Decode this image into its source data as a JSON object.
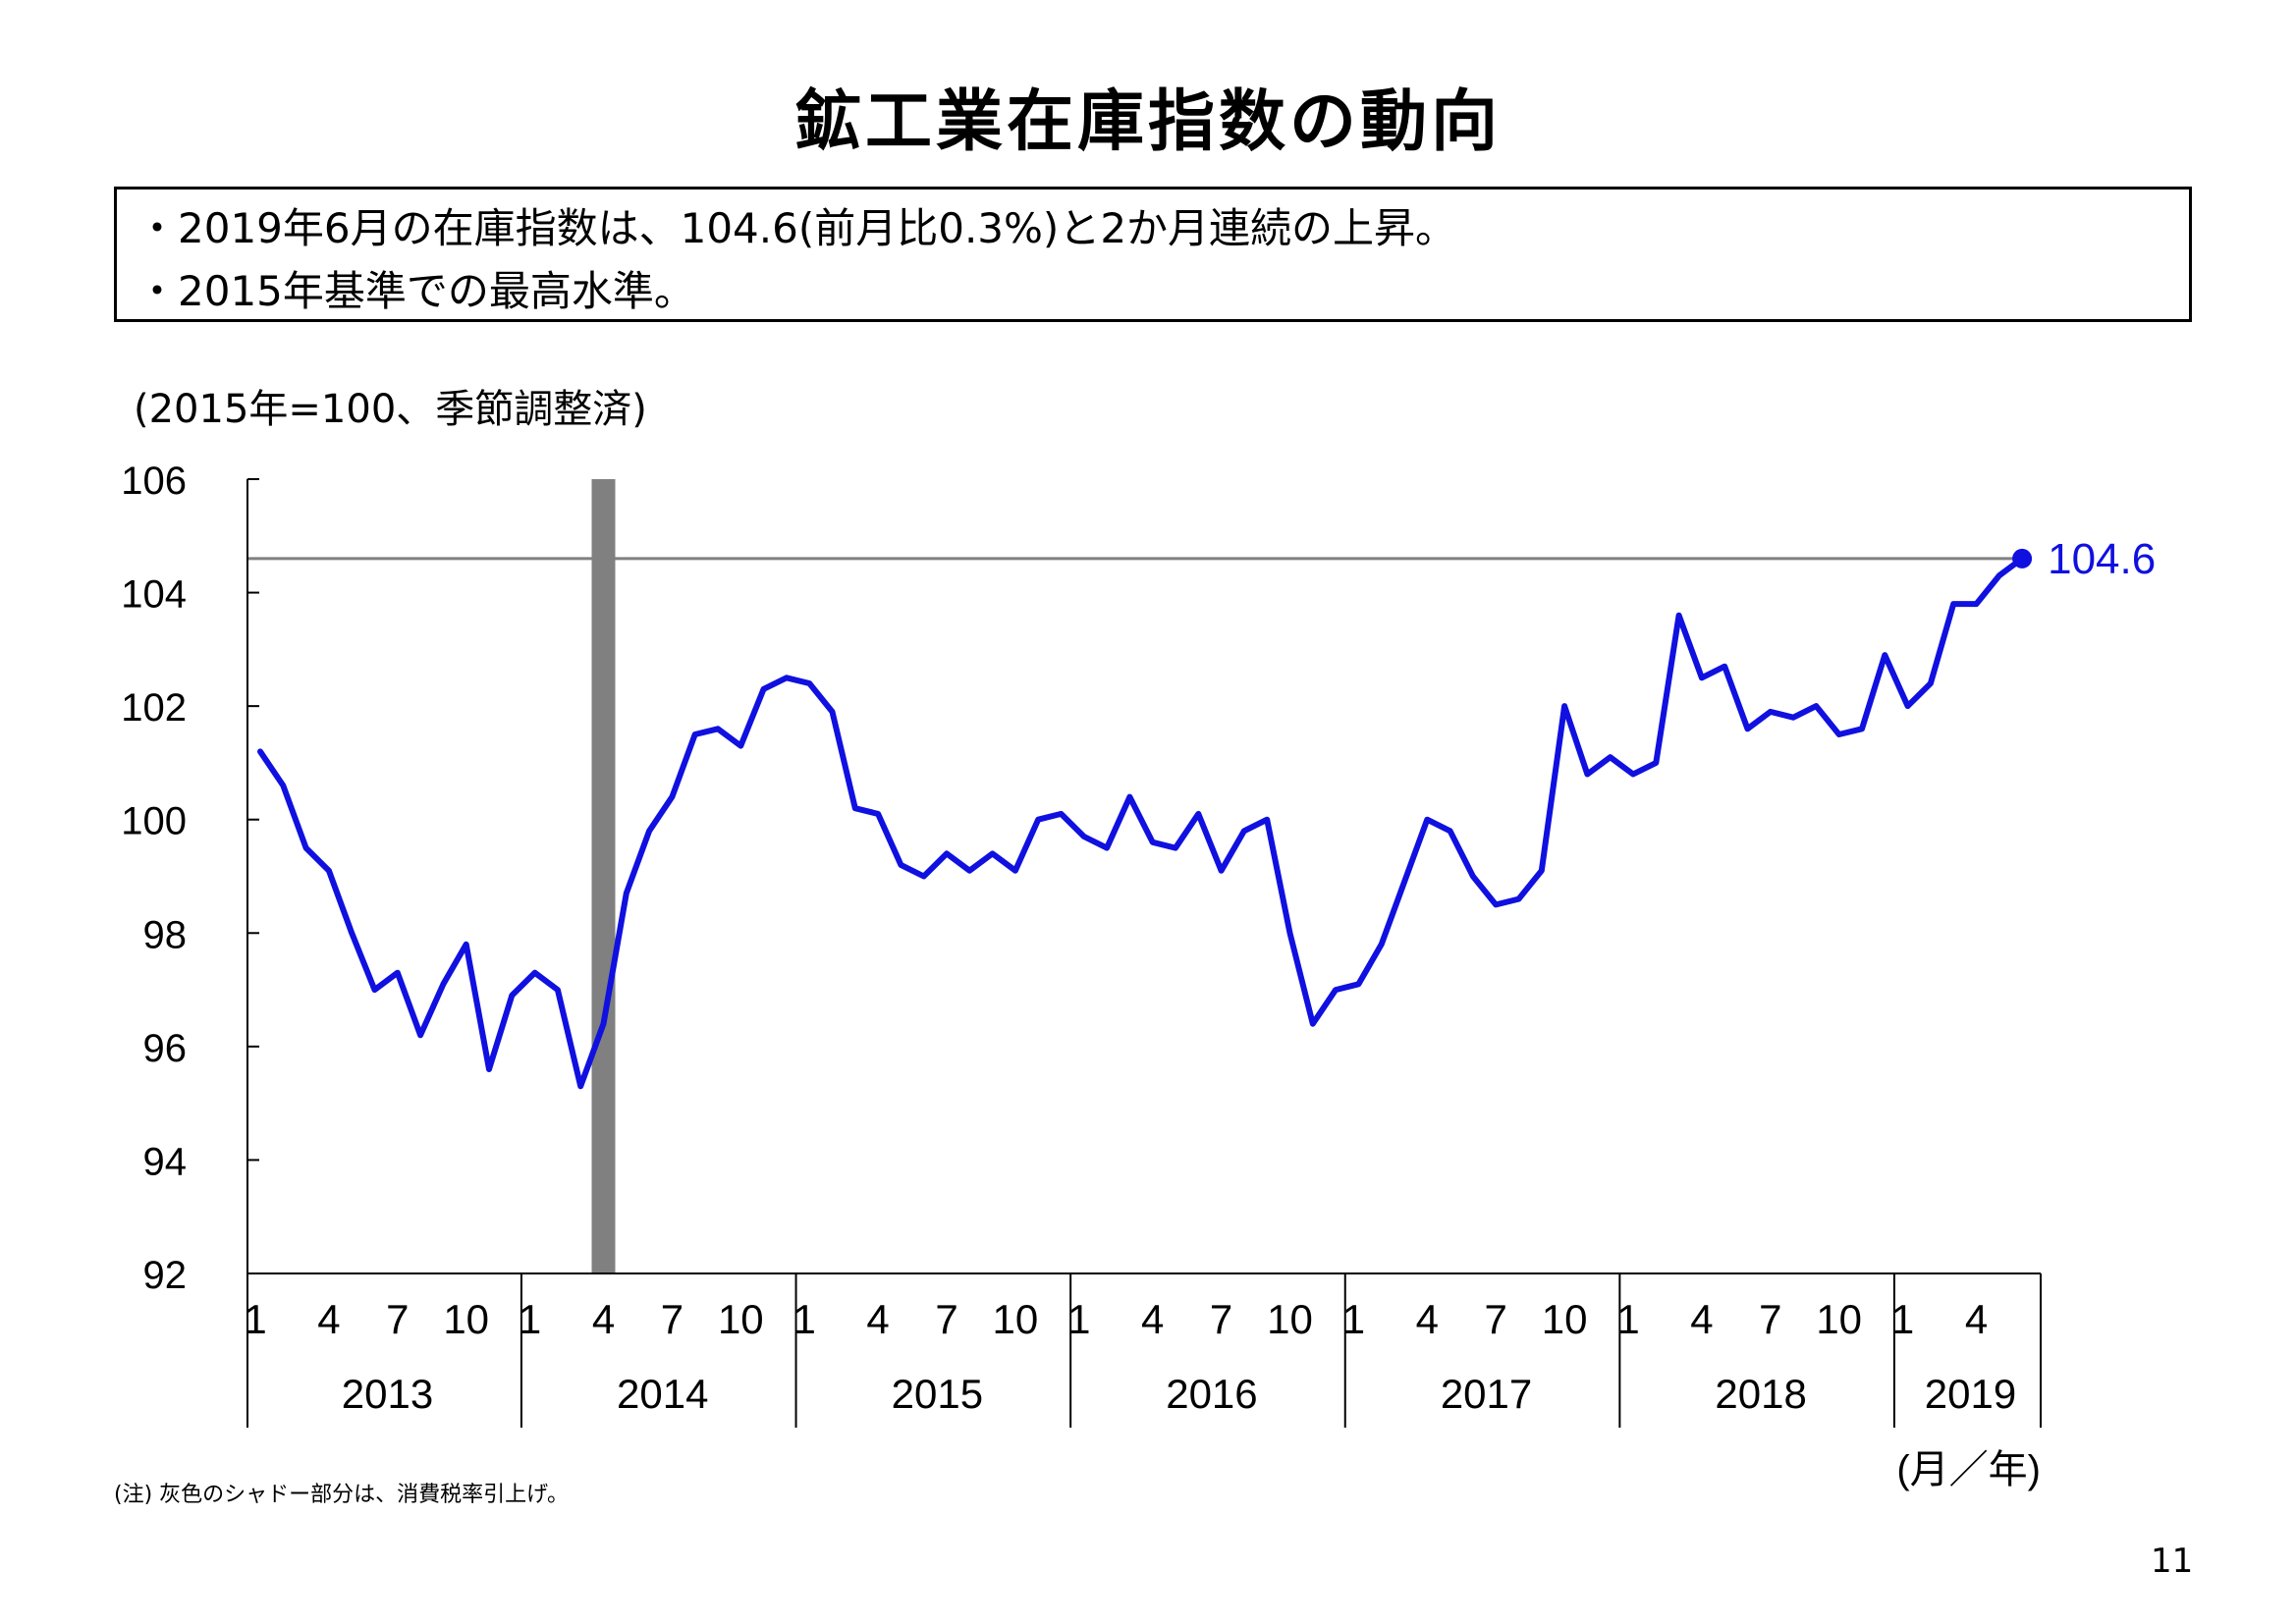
{
  "title": "鉱工業在庫指数の動向",
  "summary": [
    "・2019年6月の在庫指数は、104.6(前月比0.3%)と2か月連続の上昇。",
    "・2015年基準での最高水準。"
  ],
  "note": "(注) 灰色のシャドー部分は、消費税率引上げ。",
  "page_number": "11",
  "colors": {
    "line": "#1010e0",
    "shade": "#808080",
    "ref_line": "#808080",
    "axis": "#000000"
  },
  "chart_data": {
    "type": "line",
    "title": "",
    "unit_label": "(2015年=100、季節調整済)",
    "xlabel": "(月／年)",
    "ylim": [
      92,
      106
    ],
    "yticks": [
      92,
      94,
      96,
      98,
      100,
      102,
      104,
      106
    ],
    "years": [
      "2013",
      "2014",
      "2015",
      "2016",
      "2017",
      "2018",
      "2019"
    ],
    "month_ticks": [
      "1",
      "4",
      "7",
      "10"
    ],
    "series": [
      {
        "values": [
          101.2,
          100.6,
          99.5,
          99.1,
          98.0,
          97.0,
          97.3,
          96.2,
          97.1,
          97.8,
          95.6,
          96.9,
          97.3,
          97.0,
          95.3,
          96.4,
          98.7,
          99.8,
          100.4,
          101.5,
          101.6,
          101.3,
          102.3,
          102.5,
          102.4,
          101.9,
          100.2,
          100.1,
          99.2,
          99.0,
          99.4,
          99.1,
          99.4,
          99.1,
          100.0,
          100.1,
          99.7,
          99.5,
          100.4,
          99.6,
          99.5,
          100.1,
          99.1,
          99.8,
          100.0,
          98.0,
          96.4,
          97.0,
          97.1,
          97.8,
          98.9,
          100.0,
          99.8,
          99.0,
          98.5,
          98.6,
          99.1,
          102.0,
          100.8,
          101.1,
          100.8,
          101.0,
          103.6,
          102.5,
          102.7,
          101.6,
          101.9,
          101.8,
          102.0,
          101.5,
          101.6,
          102.9,
          102.0,
          102.4,
          103.8,
          103.8,
          104.3,
          104.6
        ]
      }
    ],
    "shade_month": "2014-04",
    "reference_line": 104.6,
    "last_label": "104.6"
  }
}
